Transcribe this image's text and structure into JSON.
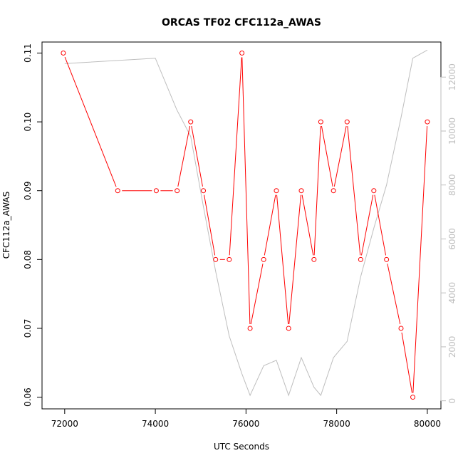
{
  "chart_data": {
    "type": "line",
    "title": "ORCAS TF02 CFC112a_AWAS",
    "xlabel": "UTC Seconds",
    "ylabel": "CFC112a_AWAS",
    "y2label": "",
    "xlim": [
      71500,
      80300
    ],
    "ylim": [
      0.0583,
      0.1116
    ],
    "y2lim": [
      -300,
      13300
    ],
    "x_ticks": [
      72000,
      74000,
      76000,
      78000,
      80000
    ],
    "y_ticks": [
      0.06,
      0.07,
      0.08,
      0.09,
      0.1,
      0.11
    ],
    "y_tick_labels": [
      "0.06",
      "0.07",
      "0.08",
      "0.09",
      "0.10",
      "0.11"
    ],
    "y2_ticks": [
      0,
      2000,
      4000,
      6000,
      8000,
      10000,
      12000
    ],
    "grid": false,
    "series": [
      {
        "axis": "left",
        "color": "#ff0000",
        "markers": "open-circle",
        "x": [
          71970,
          73170,
          74020,
          74480,
          74780,
          75060,
          75330,
          75630,
          75910,
          76090,
          76390,
          76670,
          76940,
          77220,
          77500,
          77650,
          77930,
          78230,
          78530,
          78820,
          79100,
          79420,
          79680,
          80000
        ],
        "y": [
          0.11,
          0.09,
          0.09,
          0.09,
          0.1,
          0.09,
          0.08,
          0.08,
          0.11,
          0.07,
          0.08,
          0.09,
          0.07,
          0.09,
          0.08,
          0.1,
          0.09,
          0.1,
          0.08,
          0.09,
          0.08,
          0.07,
          0.06,
          0.1
        ]
      },
      {
        "axis": "right",
        "color": "#bebebe",
        "markers": "none",
        "x": [
          72000,
          74000,
          74470,
          74780,
          75060,
          75330,
          75630,
          75910,
          76090,
          76390,
          76670,
          76940,
          77220,
          77500,
          77650,
          77930,
          78230,
          78530,
          78820,
          79100,
          79420,
          79680,
          80000
        ],
        "y": [
          12500,
          12700,
          10800,
          9800,
          7200,
          4800,
          2400,
          1000,
          200,
          1300,
          1500,
          200,
          1600,
          500,
          200,
          1600,
          2200,
          4600,
          6400,
          8000,
          10500,
          12700,
          13000
        ]
      }
    ]
  }
}
